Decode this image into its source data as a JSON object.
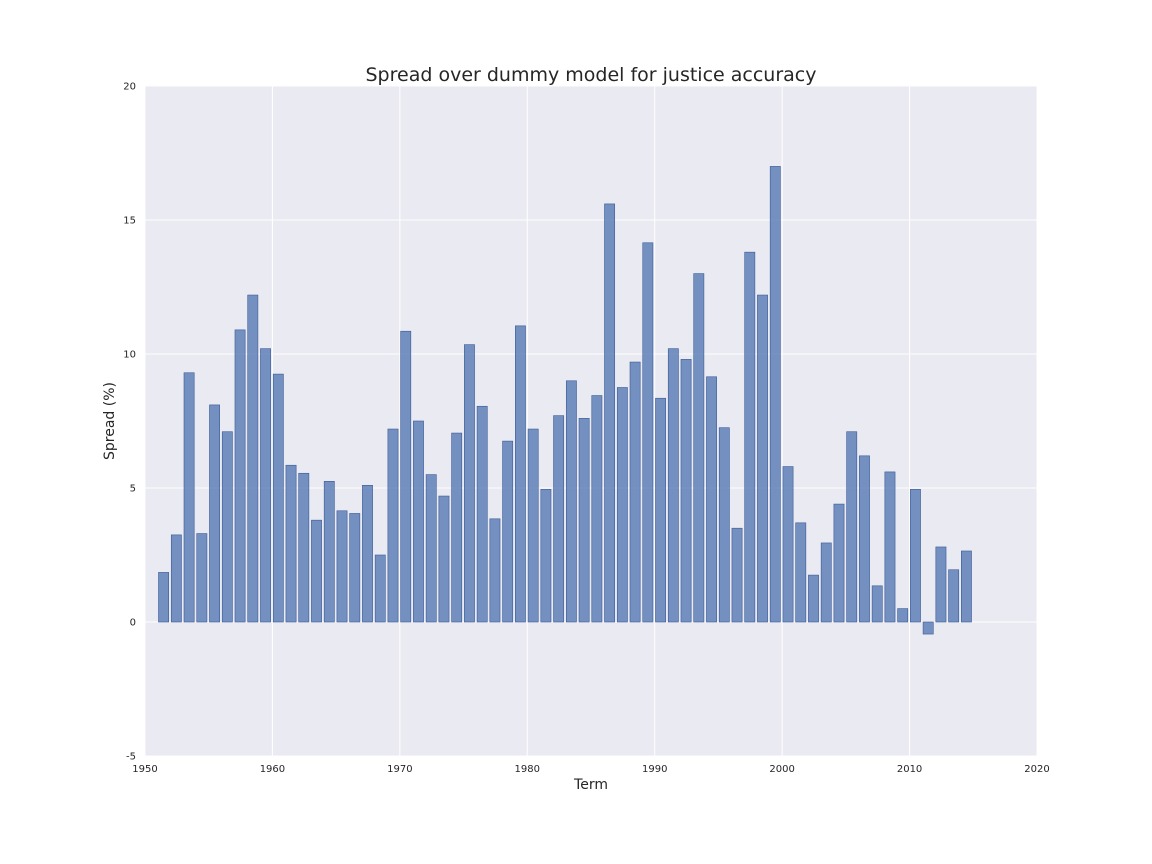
{
  "colors": {
    "plot_background": "#eaeaf2",
    "bar_fill": "#4c72b0",
    "grid": "#ffffff",
    "text": "#262626"
  },
  "chart_data": {
    "type": "bar",
    "title": "Spread over dummy model for justice accuracy",
    "xlabel": "Term",
    "ylabel": "Spread (%)",
    "xlim": [
      1950,
      2020
    ],
    "ylim": [
      -5,
      20
    ],
    "xticks": [
      1950,
      1960,
      1970,
      1980,
      1990,
      2000,
      2010,
      2020
    ],
    "yticks": [
      -5,
      0,
      5,
      10,
      15,
      20
    ],
    "grid": true,
    "legend": "none",
    "x": [
      1951,
      1952,
      1953,
      1954,
      1955,
      1956,
      1957,
      1958,
      1959,
      1960,
      1961,
      1962,
      1963,
      1964,
      1965,
      1966,
      1967,
      1968,
      1969,
      1970,
      1971,
      1972,
      1973,
      1974,
      1975,
      1976,
      1977,
      1978,
      1979,
      1980,
      1981,
      1982,
      1983,
      1984,
      1985,
      1986,
      1987,
      1988,
      1989,
      1990,
      1991,
      1992,
      1993,
      1994,
      1995,
      1996,
      1997,
      1998,
      1999,
      2000,
      2001,
      2002,
      2003,
      2004,
      2005,
      2006,
      2007,
      2008,
      2009,
      2010,
      2011,
      2012,
      2013,
      2014
    ],
    "values": [
      1.85,
      3.25,
      9.3,
      3.3,
      8.1,
      7.1,
      10.9,
      12.2,
      10.2,
      9.25,
      5.85,
      5.55,
      3.8,
      5.25,
      4.15,
      4.05,
      5.1,
      2.5,
      7.2,
      10.85,
      7.5,
      5.5,
      4.7,
      7.05,
      10.35,
      8.05,
      3.85,
      6.75,
      11.05,
      7.2,
      4.95,
      7.7,
      9.0,
      7.6,
      8.45,
      15.6,
      8.75,
      9.7,
      14.15,
      8.35,
      10.2,
      9.8,
      13.0,
      9.15,
      7.25,
      3.5,
      13.8,
      12.2,
      17.0,
      5.8,
      3.7,
      1.75,
      2.95,
      4.4,
      7.1,
      6.2,
      1.35,
      5.6,
      0.5,
      4.95,
      -0.45,
      2.8,
      1.95,
      2.65
    ]
  }
}
